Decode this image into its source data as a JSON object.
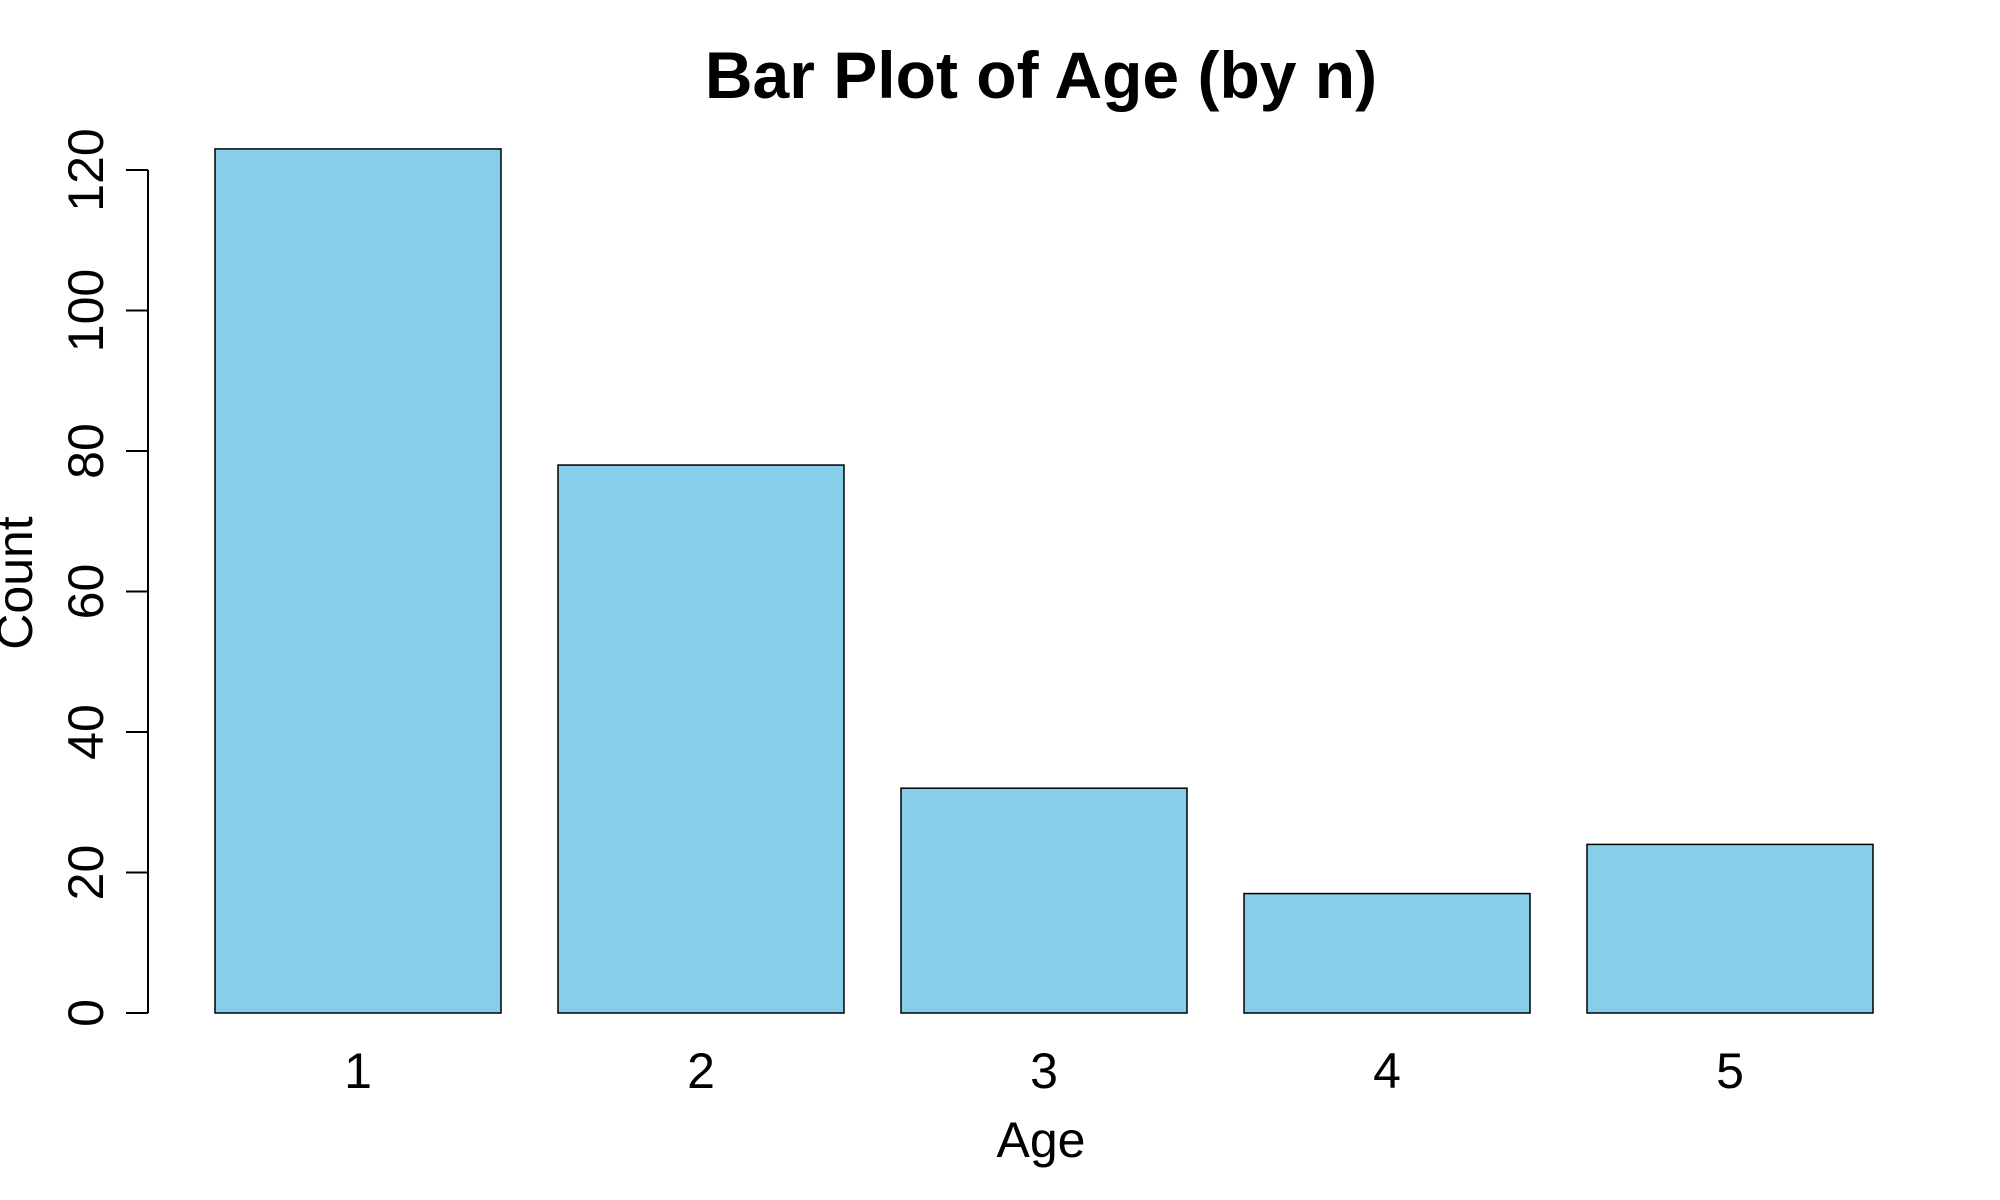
{
  "chart_data": {
    "type": "bar",
    "title": "Bar Plot of Age (by n)",
    "xlabel": "Age",
    "ylabel": "Count",
    "categories": [
      "1",
      "2",
      "3",
      "4",
      "5"
    ],
    "values": [
      123,
      78,
      32,
      17,
      24
    ],
    "ylim": [
      0,
      120
    ],
    "yticks": [
      "0",
      "20",
      "40",
      "60",
      "80",
      "100",
      "120"
    ],
    "bar_color": "#87CEEB",
    "grid": false,
    "legend": "none"
  }
}
